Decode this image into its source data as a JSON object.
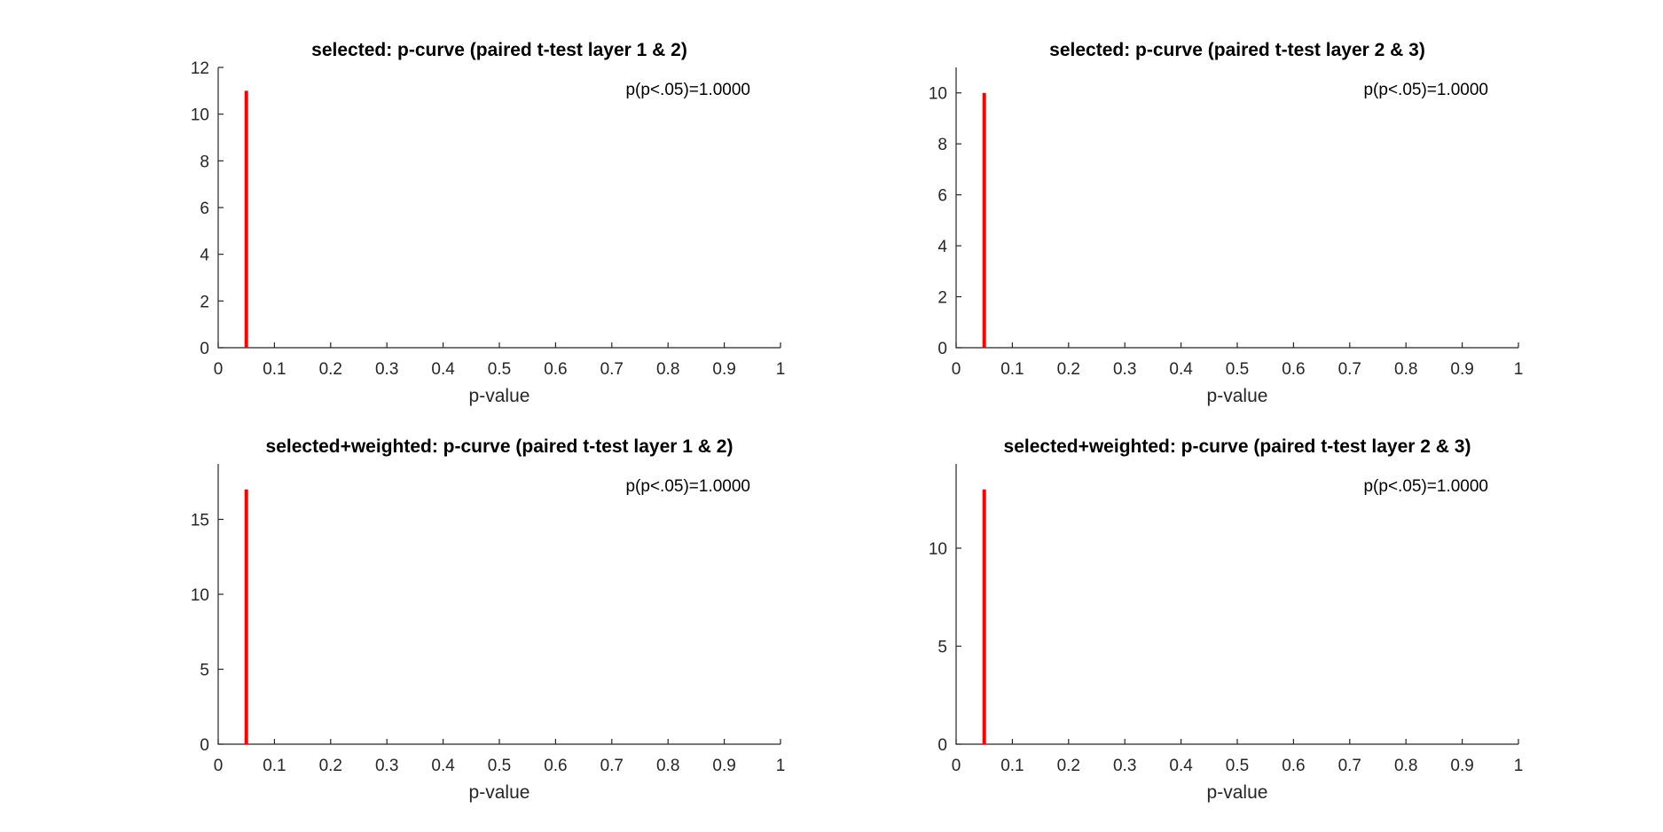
{
  "colors": {
    "bar": "#ff0000",
    "axis": "#262626",
    "background": "#ffffff"
  },
  "chart_data": [
    {
      "type": "bar",
      "title": "selected: p-curve (paired t-test layer 1 & 2)",
      "xlabel": "p-value",
      "ylabel": "",
      "xlim": [
        0,
        1
      ],
      "ylim": [
        0,
        12
      ],
      "xticks": [
        0,
        0.1,
        0.2,
        0.3,
        0.4,
        0.5,
        0.6,
        0.7,
        0.8,
        0.9,
        1
      ],
      "xtick_labels": [
        "0",
        "0.1",
        "0.2",
        "0.3",
        "0.4",
        "0.5",
        "0.6",
        "0.7",
        "0.8",
        "0.9",
        "1"
      ],
      "yticks": [
        0,
        2,
        4,
        6,
        8,
        10,
        12
      ],
      "ytick_labels": [
        "0",
        "2",
        "4",
        "6",
        "8",
        "10",
        "12"
      ],
      "x": [
        0.05
      ],
      "values": [
        11
      ],
      "annotation": "p(p<.05)=1.0000",
      "grid": false
    },
    {
      "type": "bar",
      "title": "selected: p-curve (paired t-test layer 2 & 3)",
      "xlabel": "p-value",
      "ylabel": "",
      "xlim": [
        0,
        1
      ],
      "ylim": [
        0,
        11
      ],
      "xticks": [
        0,
        0.1,
        0.2,
        0.3,
        0.4,
        0.5,
        0.6,
        0.7,
        0.8,
        0.9,
        1
      ],
      "xtick_labels": [
        "0",
        "0.1",
        "0.2",
        "0.3",
        "0.4",
        "0.5",
        "0.6",
        "0.7",
        "0.8",
        "0.9",
        "1"
      ],
      "yticks": [
        0,
        2,
        4,
        6,
        8,
        10
      ],
      "ytick_labels": [
        "0",
        "2",
        "4",
        "6",
        "8",
        "10"
      ],
      "x": [
        0.05
      ],
      "values": [
        10
      ],
      "annotation": "p(p<.05)=1.0000",
      "grid": false
    },
    {
      "type": "bar",
      "title": "selected+weighted: p-curve (paired t-test layer 1 & 2)",
      "xlabel": "p-value",
      "ylabel": "",
      "xlim": [
        0,
        1
      ],
      "ylim": [
        0,
        18.7
      ],
      "xticks": [
        0,
        0.1,
        0.2,
        0.3,
        0.4,
        0.5,
        0.6,
        0.7,
        0.8,
        0.9,
        1
      ],
      "xtick_labels": [
        "0",
        "0.1",
        "0.2",
        "0.3",
        "0.4",
        "0.5",
        "0.6",
        "0.7",
        "0.8",
        "0.9",
        "1"
      ],
      "yticks": [
        0,
        5,
        10,
        15
      ],
      "ytick_labels": [
        "0",
        "5",
        "10",
        "15"
      ],
      "x": [
        0.05
      ],
      "values": [
        17
      ],
      "annotation": "p(p<.05)=1.0000",
      "grid": false
    },
    {
      "type": "bar",
      "title": "selected+weighted: p-curve (paired t-test layer 2 & 3)",
      "xlabel": "p-value",
      "ylabel": "",
      "xlim": [
        0,
        1
      ],
      "ylim": [
        0,
        14.3
      ],
      "xticks": [
        0,
        0.1,
        0.2,
        0.3,
        0.4,
        0.5,
        0.6,
        0.7,
        0.8,
        0.9,
        1
      ],
      "xtick_labels": [
        "0",
        "0.1",
        "0.2",
        "0.3",
        "0.4",
        "0.5",
        "0.6",
        "0.7",
        "0.8",
        "0.9",
        "1"
      ],
      "yticks": [
        0,
        5,
        10
      ],
      "ytick_labels": [
        "0",
        "5",
        "10"
      ],
      "x": [
        0.05
      ],
      "values": [
        13
      ],
      "annotation": "p(p<.05)=1.0000",
      "grid": false
    }
  ]
}
